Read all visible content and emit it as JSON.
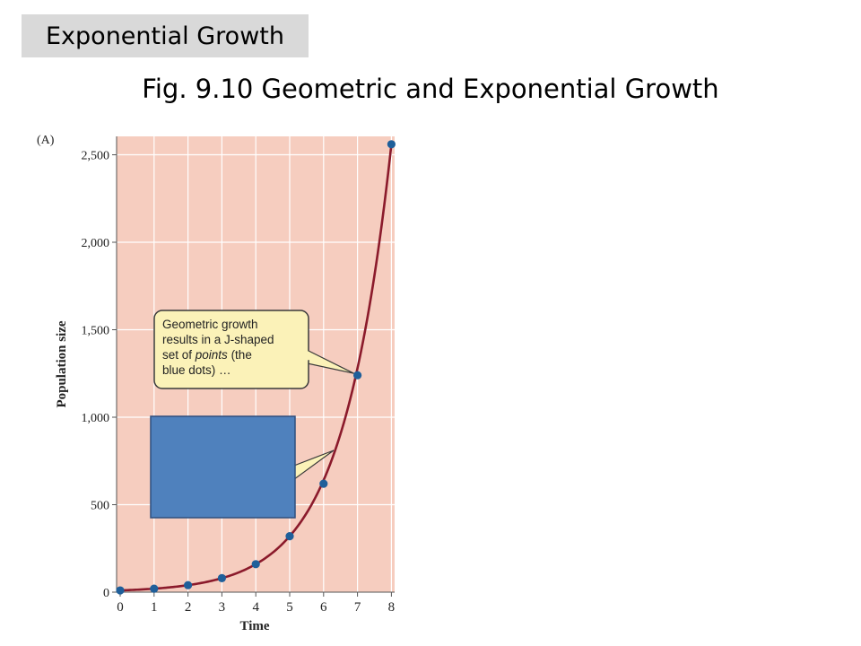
{
  "slide": {
    "tag": "Exponential Growth",
    "title": "Fig. 9.10  Geometric and Exponential Growth"
  },
  "colors": {
    "plot_background": "#f6cdbf",
    "grid": "#ffffff",
    "curve": "#8b1a2b",
    "points": "#1f5f9a",
    "callout_fill": "#fbf2b8",
    "callout_border": "#3a3a3a",
    "cover_box": "#4f81bd",
    "cover_box_border": "#2f4f7f",
    "tag_background": "#d9d9d9"
  },
  "chart_data": {
    "type": "scatter",
    "panel_label": "(A)",
    "xlabel": "Time",
    "ylabel": "Population size",
    "x_ticks": [
      0,
      1,
      2,
      3,
      4,
      5,
      6,
      7,
      8
    ],
    "y_ticks": [
      0,
      500,
      1000,
      1500,
      2000,
      2500
    ],
    "y_tick_labels": [
      "0",
      "500",
      "1,000",
      "1,500",
      "2,000",
      "2,500"
    ],
    "xlim": [
      0,
      8
    ],
    "ylim": [
      0,
      2560
    ],
    "grid": true,
    "series": [
      {
        "kind": "points",
        "x": [
          0,
          1,
          2,
          3,
          4,
          5,
          6,
          7,
          8
        ],
        "y": [
          10,
          20,
          40,
          80,
          160,
          320,
          620,
          1240,
          2560
        ]
      },
      {
        "kind": "curve",
        "x": [
          0,
          1,
          2,
          3,
          4,
          5,
          6,
          7,
          8
        ],
        "y": [
          10,
          20,
          40,
          80,
          160,
          320,
          620,
          1240,
          2560
        ]
      }
    ],
    "annotations": [
      {
        "id": "geometric",
        "lines": [
          "Geometric growth",
          "results in a J-shaped",
          "set of |points| (the",
          "blue dots) …"
        ],
        "italic_word": "points",
        "target_x": 7,
        "target_y": 1240
      }
    ]
  }
}
